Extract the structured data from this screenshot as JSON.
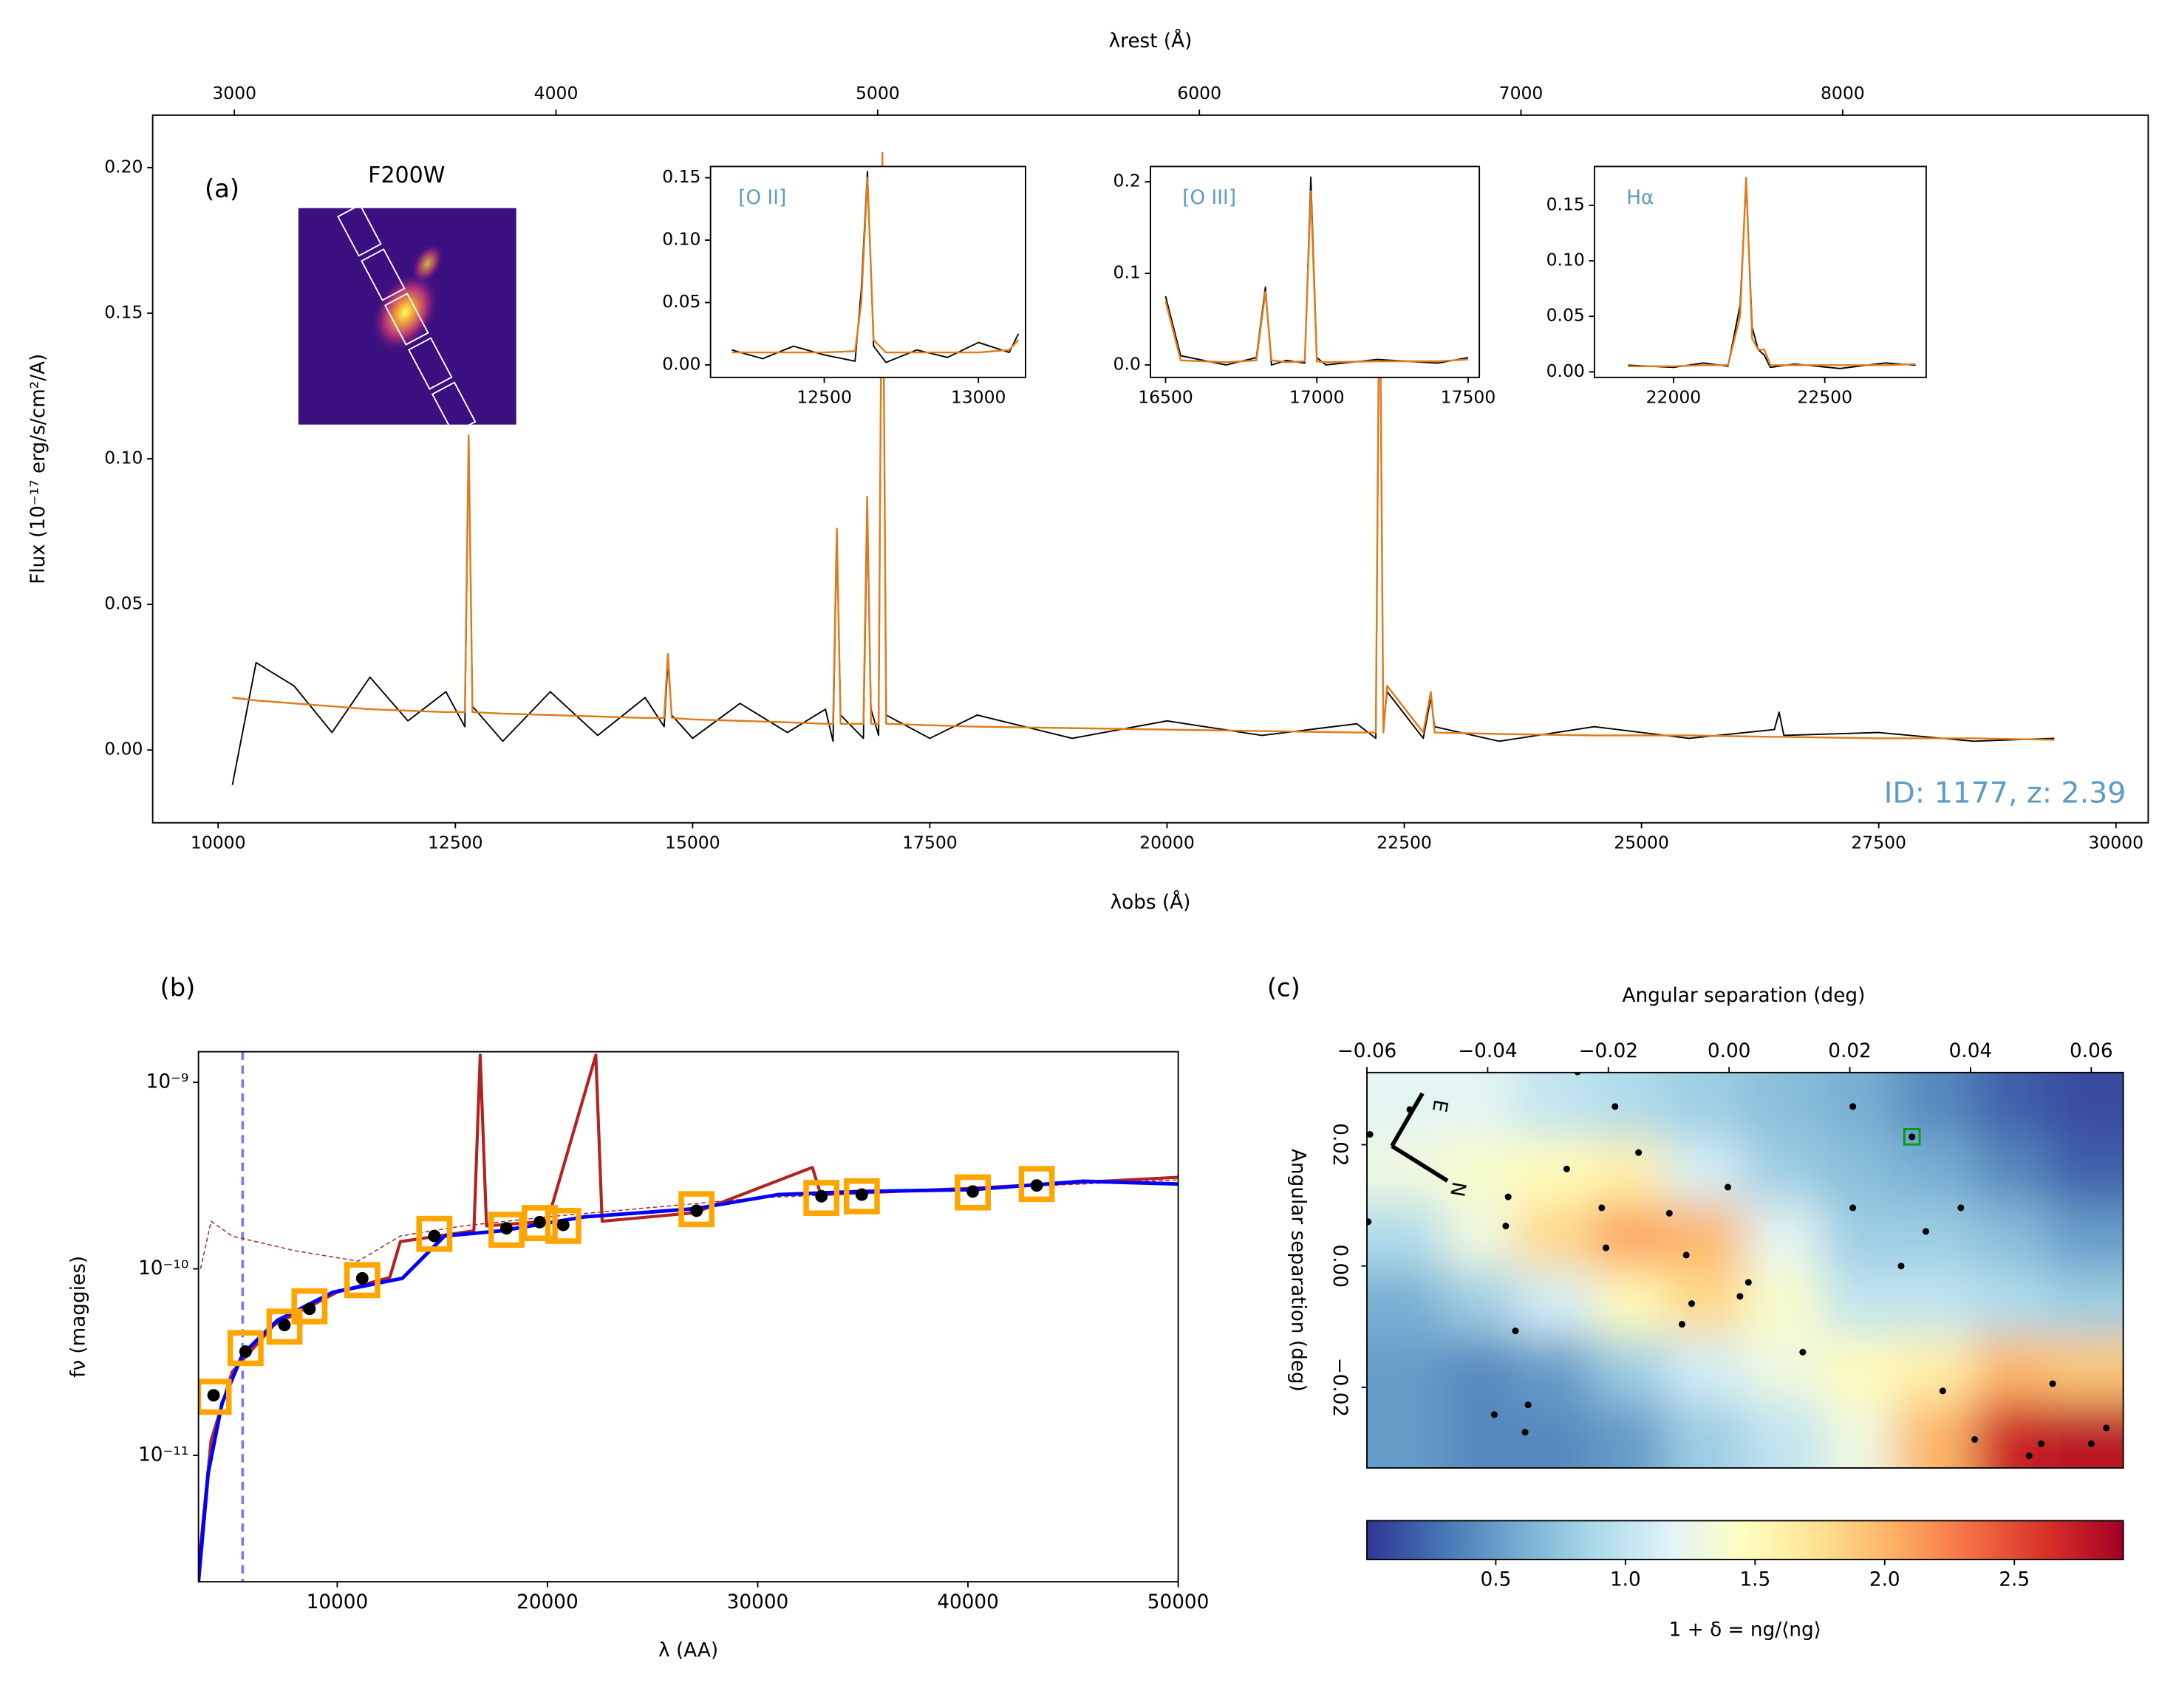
{
  "chart_data": [
    {
      "type": "line",
      "label": "(a)",
      "annotation": "ID: 1177, z: 2.39",
      "annotation_color": "#5b9bc8",
      "image_label": "F200W",
      "xlabel": "λobs (Å)",
      "x2label": "λrest (Å)",
      "ylabel": "Flux (10⁻¹⁷ erg/s/cm²/A)",
      "xlim": [
        9310,
        30340
      ],
      "xticks": [
        10000,
        12500,
        15000,
        17500,
        20000,
        22500,
        25000,
        27500,
        30000
      ],
      "x2lim": [
        2746,
        8950
      ],
      "x2ticks": [
        3000,
        4000,
        5000,
        6000,
        7000,
        8000
      ],
      "ylim": [
        -0.025,
        0.218
      ],
      "yticks": [
        {
          "value": 0,
          "label": "0.00"
        },
        0.05,
        {
          "value": 0.1,
          "label": "0.10"
        },
        0.15,
        {
          "value": 0.2,
          "label": "0.20"
        }
      ],
      "x": [
        10150,
        10400,
        10800,
        11200,
        11600,
        12000,
        12400,
        12600,
        12640,
        12680,
        13000,
        13500,
        14000,
        14500,
        14700,
        14740,
        14780,
        15000,
        15500,
        16000,
        16400,
        16480,
        16520,
        16560,
        16800,
        16840,
        16880,
        16960,
        17000,
        17040,
        17500,
        18000,
        19000,
        20000,
        21000,
        22000,
        22200,
        22240,
        22280,
        22320,
        22700,
        22780,
        22820,
        23500,
        24500,
        25500,
        26400,
        26450,
        26500,
        27500,
        28500,
        29350
      ],
      "series": [
        {
          "color": "#000000",
          "width": 1,
          "values": [
            -0.012,
            0.03,
            0.022,
            0.006,
            0.025,
            0.01,
            0.02,
            0.008,
            0.105,
            0.015,
            0.003,
            0.02,
            0.005,
            0.018,
            0.008,
            0.03,
            0.012,
            0.004,
            0.016,
            0.006,
            0.014,
            0.003,
            0.072,
            0.012,
            0.004,
            0.08,
            0.014,
            0.005,
            0.2,
            0.012,
            0.004,
            0.012,
            0.004,
            0.01,
            0.005,
            0.009,
            0.004,
            0.17,
            0.008,
            0.02,
            0.004,
            0.018,
            0.008,
            0.003,
            0.008,
            0.004,
            0.007,
            0.013,
            0.005,
            0.006,
            0.003,
            0.004
          ]
        },
        {
          "color": "#e07b1a",
          "width": 1.3,
          "values": [
            0.018,
            0.017,
            0.016,
            0.015,
            0.014,
            0.0135,
            0.013,
            0.013,
            0.108,
            0.013,
            0.0125,
            0.012,
            0.0115,
            0.011,
            0.011,
            0.033,
            0.011,
            0.0105,
            0.01,
            0.0095,
            0.009,
            0.009,
            0.076,
            0.009,
            0.009,
            0.087,
            0.009,
            0.009,
            0.205,
            0.009,
            0.0085,
            0.008,
            0.0075,
            0.007,
            0.0065,
            0.006,
            0.006,
            0.175,
            0.006,
            0.022,
            0.006,
            0.02,
            0.006,
            0.0055,
            0.005,
            0.005,
            0.0045,
            0.0045,
            0.0045,
            0.004,
            0.004,
            0.0035
          ]
        }
      ]
    },
    {
      "type": "line",
      "label": "[O II]",
      "label_color": "#5b9bc8",
      "xlim": [
        12131,
        13153
      ],
      "xticks": [
        12500,
        13000
      ],
      "ylim": [
        -0.01,
        0.159
      ],
      "yticks": [
        {
          "value": 0,
          "label": "0.00"
        },
        0.05,
        {
          "value": 0.1,
          "label": "0.10"
        },
        0.15
      ],
      "x": [
        12200,
        12300,
        12400,
        12500,
        12600,
        12620,
        12640,
        12660,
        12700,
        12800,
        12900,
        13000,
        13100,
        13130
      ],
      "series": [
        {
          "color": "#000000",
          "width": 1,
          "values": [
            0.012,
            0.005,
            0.015,
            0.008,
            0.003,
            0.06,
            0.155,
            0.015,
            0.002,
            0.012,
            0.006,
            0.018,
            0.01,
            0.025
          ]
        },
        {
          "color": "#e07b1a",
          "width": 1.3,
          "values": [
            0.01,
            0.01,
            0.01,
            0.01,
            0.011,
            0.05,
            0.15,
            0.02,
            0.01,
            0.01,
            0.01,
            0.01,
            0.012,
            0.02
          ]
        }
      ]
    },
    {
      "type": "line",
      "label": "[O III]",
      "label_color": "#5b9bc8",
      "xlim": [
        16450,
        17537
      ],
      "xticks": [
        16500,
        17000,
        17500
      ],
      "ylim": [
        -0.0136,
        0.2167
      ],
      "yticks": [
        {
          "value": 0,
          "label": "0.0"
        },
        0.1,
        0.2
      ],
      "x": [
        16500,
        16550,
        16700,
        16800,
        16830,
        16850,
        16900,
        16960,
        16980,
        17000,
        17030,
        17200,
        17400,
        17500
      ],
      "series": [
        {
          "color": "#000000",
          "width": 1,
          "values": [
            0.075,
            0.01,
            0.0,
            0.008,
            0.085,
            0.0,
            0.005,
            0.002,
            0.205,
            0.008,
            0.0,
            0.006,
            0.002,
            0.008
          ]
        },
        {
          "color": "#e07b1a",
          "width": 1.3,
          "values": [
            0.07,
            0.005,
            0.003,
            0.005,
            0.08,
            0.005,
            0.003,
            0.004,
            0.19,
            0.004,
            0.003,
            0.004,
            0.004,
            0.006
          ]
        }
      ]
    },
    {
      "type": "line",
      "label": "Hα",
      "label_color": "#5b9bc8",
      "xlim": [
        21739,
        22835
      ],
      "xticks": [
        22000,
        22500
      ],
      "ylim": [
        -0.005,
        0.185
      ],
      "yticks": [
        {
          "value": 0,
          "label": "0.00"
        },
        0.05,
        {
          "value": 0.1,
          "label": "0.10"
        },
        0.15
      ],
      "x": [
        21850,
        22000,
        22100,
        22180,
        22220,
        22240,
        22260,
        22280,
        22300,
        22320,
        22400,
        22550,
        22700,
        22800
      ],
      "series": [
        {
          "color": "#000000",
          "width": 1,
          "values": [
            0.006,
            0.004,
            0.008,
            0.005,
            0.06,
            0.17,
            0.04,
            0.02,
            0.015,
            0.004,
            0.007,
            0.003,
            0.008,
            0.006
          ]
        },
        {
          "color": "#e07b1a",
          "width": 1.3,
          "values": [
            0.005,
            0.005,
            0.006,
            0.006,
            0.05,
            0.175,
            0.03,
            0.02,
            0.02,
            0.006,
            0.006,
            0.006,
            0.006,
            0.007
          ]
        }
      ]
    },
    {
      "type": "line",
      "label": "(b)",
      "xlabel": "λ (AA)",
      "ylabel": "fν (maggies)",
      "log_y": true,
      "xlim": [
        3400,
        50000
      ],
      "xticks": [
        10000,
        20000,
        30000,
        40000,
        50000
      ],
      "ylim": [
        2.1e-12,
        1.46e-09
      ],
      "yticks": [
        {
          "value": 1e-09,
          "label": "10⁻⁹"
        },
        {
          "value": 1e-10,
          "label": "10⁻¹⁰"
        },
        {
          "value": 1e-11,
          "label": "10⁻¹¹"
        }
      ],
      "vlines": [
        5500
      ],
      "vline_color": "#7b7bf0",
      "series": [
        {
          "color": "#b22222",
          "width": 0.8,
          "style": "dashed",
          "x": [
            3500,
            4000,
            5000,
            8000,
            11000,
            13000,
            16000,
            20000,
            30000,
            50000
          ],
          "values": [
            1e-10,
            1.8e-10,
            1.5e-10,
            1.25e-10,
            1.1e-10,
            1.5e-10,
            1.7e-10,
            1.9e-10,
            2.4e-10,
            3e-10
          ]
        },
        {
          "color": "#b22222",
          "width": 2.2,
          "x": [
            3400,
            4000,
            5000,
            7000,
            10000,
            12500,
            13000,
            16500,
            16800,
            17100,
            20000,
            22300,
            22600,
            27000,
            32600,
            33000,
            40000,
            50000
          ],
          "values": [
            2.5e-12,
            1.2e-11,
            2.8e-11,
            5e-11,
            7.5e-11,
            9e-11,
            1.4e-10,
            1.6e-10,
            1.4e-09,
            1.7e-10,
            1.8e-10,
            1.4e-09,
            1.8e-10,
            2e-10,
            3.5e-10,
            2.5e-10,
            2.7e-10,
            3.1e-10
          ]
        },
        {
          "color": "#0000ff",
          "width": 2.6,
          "x": [
            3400,
            3860,
            4520,
            5510,
            7160,
            9800,
            13100,
            15100,
            17800,
            21760,
            27000,
            30960,
            34920,
            40200,
            45480,
            50000
          ],
          "values": [
            2.1e-12,
            8e-12,
            1.9e-11,
            3.5e-11,
            5.3e-11,
            7.5e-11,
            8.9e-11,
            1.5e-10,
            1.6e-10,
            1.9e-10,
            2.1e-10,
            2.5e-10,
            2.6e-10,
            2.66e-10,
            2.95e-10,
            2.85e-10
          ]
        },
        {
          "color": "#ffa500",
          "style": "squares",
          "x": [
            4120,
            5640,
            7490,
            8680,
            11190,
            14620,
            18050,
            19630,
            20750,
            27090,
            33030,
            34950,
            40230,
            43270
          ],
          "values": [
            2.06e-11,
            3.76e-11,
            4.9e-11,
            6.3e-11,
            8.7e-11,
            1.54e-10,
            1.62e-10,
            1.76e-10,
            1.7e-10,
            2.09e-10,
            2.4e-10,
            2.45e-10,
            2.57e-10,
            2.85e-10
          ]
        },
        {
          "color": "#000000",
          "style": "dots",
          "x": [
            4120,
            5640,
            7490,
            8680,
            11190,
            14620,
            18050,
            19630,
            20750,
            27090,
            33030,
            34950,
            40230,
            43270
          ],
          "values": [
            2.1e-11,
            3.6e-11,
            5e-11,
            6.1e-11,
            8.9e-11,
            1.5e-10,
            1.65e-10,
            1.78e-10,
            1.72e-10,
            2.05e-10,
            2.45e-10,
            2.5e-10,
            2.6e-10,
            2.8e-10
          ]
        }
      ]
    },
    {
      "type": "heatmap",
      "label": "(c)",
      "xlabel": "Angular separation (deg)",
      "ylabel": "Angular separation (deg)",
      "xlim": [
        -0.06,
        0.0653
      ],
      "xticks": [
        {
          "value": -0.06,
          "label": "−0.06"
        },
        {
          "value": -0.04,
          "label": "−0.04"
        },
        {
          "value": -0.02,
          "label": "−0.02"
        },
        {
          "value": 0,
          "label": "0.00"
        },
        0.02,
        0.04,
        0.06
      ],
      "ylim": [
        -0.0333,
        0.0319
      ],
      "yticks": [
        0.02,
        {
          "value": 0,
          "label": "0.00"
        },
        {
          "value": -0.02,
          "label": "−0.02"
        }
      ],
      "cmap": "RdYlBu_r",
      "clim": [
        0.003,
        2.92
      ],
      "colorbar_label": "1 + δ = ng/⟨ng⟩",
      "colorbar_ticks": [
        0.5,
        {
          "value": 1,
          "label": "1.0"
        },
        1.5,
        {
          "value": 2,
          "label": "2.0"
        },
        2.5
      ],
      "x_centers": [
        -0.054,
        -0.041,
        -0.029,
        -0.016,
        -0.004,
        0.009,
        0.022,
        0.034,
        0.047,
        0.059
      ],
      "y_centers": [
        0.0265,
        0.0157,
        0.0049,
        -0.006,
        -0.017,
        -0.0278
      ],
      "z": [
        [
          1.2,
          1.2,
          1.0,
          0.9,
          0.8,
          0.7,
          0.6,
          0.4,
          0.2,
          0.1
        ],
        [
          1.3,
          1.4,
          1.5,
          1.6,
          1.1,
          0.8,
          0.7,
          0.6,
          0.4,
          0.2
        ],
        [
          0.9,
          1.3,
          1.8,
          2.1,
          2.0,
          1.2,
          0.8,
          0.8,
          0.7,
          0.5
        ],
        [
          0.6,
          0.8,
          1.1,
          1.5,
          1.8,
          1.4,
          1.0,
          1.0,
          0.9,
          0.8
        ],
        [
          0.5,
          0.4,
          0.5,
          0.8,
          1.1,
          1.3,
          1.5,
          1.6,
          2.0,
          1.9
        ],
        [
          0.5,
          0.4,
          0.4,
          0.5,
          0.8,
          1.0,
          1.3,
          2.0,
          2.7,
          2.8
        ]
      ],
      "points": {
        "x": [
          -0.0595,
          -0.0598,
          -0.0529,
          -0.0366,
          -0.037,
          -0.0269,
          -0.0251,
          -0.0189,
          -0.015,
          -0.0211,
          -0.0204,
          -0.0099,
          -0.0071,
          -0.0062,
          -0.0078,
          -0.0002,
          0.0032,
          0.0018,
          0.0122,
          -0.0354,
          -0.0389,
          -0.0333,
          -0.0338,
          0.0205,
          0.0205,
          0.0303,
          0.0285,
          0.0326,
          0.0384,
          0.0354,
          0.0407,
          0.0536,
          0.0497,
          0.0517,
          0.06,
          0.0625
        ],
        "y": [
          0.0217,
          0.0073,
          0.0258,
          0.0114,
          0.0066,
          0.016,
          0.032,
          0.0263,
          0.0187,
          0.0096,
          0.003,
          0.0087,
          0.0018,
          -0.0062,
          -0.0096,
          0.013,
          -0.0027,
          -0.005,
          -0.0142,
          -0.0107,
          -0.0245,
          -0.0229,
          -0.0274,
          0.0263,
          0.0096,
          0.0213,
          0.0,
          0.0057,
          0.0096,
          -0.0206,
          -0.0286,
          -0.0194,
          -0.0313,
          -0.0293,
          -0.0293,
          -0.0267
        ]
      },
      "target": [
        0.0303,
        0.0213
      ],
      "target_color": "#00a000",
      "compass": [
        "E",
        "N"
      ]
    }
  ]
}
